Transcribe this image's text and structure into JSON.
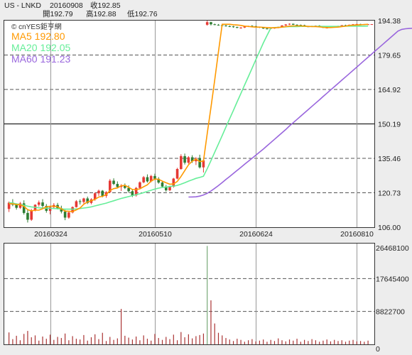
{
  "header": {
    "symbol": "US - LNKD",
    "date": "20160908",
    "close_label": "收192.85",
    "open_label": "開192.79",
    "high_label": "高192.88",
    "low_label": "低192.76"
  },
  "source_mark": "© cnYES鉅亨網",
  "colors": {
    "background": "#ededed",
    "plot_bg": "#ffffff",
    "up_candle": "#e53935",
    "down_candle": "#2e7d32",
    "ma5": "#ff9900",
    "ma20": "#66ee99",
    "ma60": "#9966dd",
    "volume_bar": "#aa3333",
    "volume_spike": "#77aa77"
  },
  "chart_data": [
    {
      "type": "candlestick",
      "title": "US - LNKD",
      "x_tick_labels": [
        "20160324",
        "20160510",
        "20160624",
        "20160810"
      ],
      "ylim": [
        106.0,
        194.38
      ],
      "y_ticks": [
        194.38,
        179.65,
        164.92,
        150.19,
        135.46,
        120.73,
        106.0
      ],
      "y_tick_labels": [
        "194.38",
        "179.65",
        "164.92",
        "150.19",
        "135.46",
        "120.73",
        "106.00"
      ],
      "grid": true,
      "legend_position": "top-left",
      "moving_averages": [
        {
          "name": "MA5",
          "label": "MA5 192.80"
        },
        {
          "name": "MA20",
          "label": "MA20 192.05"
        },
        {
          "name": "MA60",
          "label": "MA60 191.23"
        }
      ],
      "ohlc": [
        [
          113.8,
          117.0,
          112.5,
          116.5
        ],
        [
          116.5,
          118.0,
          115.0,
          115.6
        ],
        [
          115.6,
          116.2,
          113.5,
          114.3
        ],
        [
          114.3,
          116.8,
          113.8,
          116.2
        ],
        [
          116.2,
          117.5,
          111.4,
          112.1
        ],
        [
          112.1,
          113.4,
          108.0,
          109.2
        ],
        [
          109.2,
          113.8,
          108.7,
          113.1
        ],
        [
          113.1,
          115.8,
          112.8,
          115.6
        ],
        [
          115.6,
          117.4,
          114.8,
          116.6
        ],
        [
          116.6,
          118.0,
          114.2,
          115.1
        ],
        [
          115.1,
          115.9,
          112.2,
          113.0
        ],
        [
          113.0,
          114.8,
          111.5,
          114.6
        ],
        [
          114.6,
          116.3,
          113.9,
          115.5
        ],
        [
          115.5,
          116.4,
          113.6,
          114.1
        ],
        [
          114.1,
          115.2,
          111.9,
          112.7
        ],
        [
          112.7,
          113.4,
          109.0,
          110.1
        ],
        [
          110.1,
          112.6,
          109.6,
          112.3
        ],
        [
          112.3,
          114.9,
          111.9,
          114.6
        ],
        [
          114.6,
          117.6,
          114.4,
          117.1
        ],
        [
          117.1,
          117.9,
          115.7,
          116.8
        ],
        [
          116.8,
          118.6,
          116.1,
          118.3
        ],
        [
          118.3,
          119.1,
          115.9,
          116.4
        ],
        [
          116.4,
          118.4,
          115.8,
          117.9
        ],
        [
          117.9,
          120.9,
          117.3,
          120.5
        ],
        [
          120.5,
          122.1,
          119.4,
          121.6
        ],
        [
          121.6,
          121.9,
          118.8,
          119.4
        ],
        [
          119.4,
          121.4,
          118.6,
          121.0
        ],
        [
          121.0,
          126.6,
          120.7,
          125.9
        ],
        [
          125.9,
          126.9,
          124.0,
          124.5
        ],
        [
          124.5,
          125.6,
          122.6,
          123.2
        ],
        [
          123.2,
          124.4,
          121.5,
          123.8
        ],
        [
          123.8,
          124.7,
          122.3,
          122.8
        ],
        [
          122.8,
          123.9,
          120.7,
          121.4
        ],
        [
          121.4,
          122.4,
          118.9,
          119.6
        ],
        [
          119.6,
          123.2,
          119.1,
          122.8
        ],
        [
          122.8,
          125.6,
          122.4,
          125.2
        ],
        [
          125.2,
          127.9,
          124.8,
          127.4
        ],
        [
          127.4,
          128.6,
          125.1,
          125.6
        ],
        [
          125.6,
          128.4,
          125.2,
          127.9
        ],
        [
          127.9,
          128.9,
          126.2,
          126.7
        ],
        [
          126.7,
          127.4,
          124.6,
          125.1
        ],
        [
          125.1,
          125.7,
          122.9,
          123.4
        ],
        [
          123.4,
          124.1,
          121.2,
          121.8
        ],
        [
          121.8,
          123.7,
          121.4,
          123.3
        ],
        [
          123.3,
          127.1,
          122.9,
          126.8
        ],
        [
          126.8,
          131.4,
          126.5,
          130.9
        ],
        [
          130.9,
          137.2,
          130.6,
          136.4
        ],
        [
          136.4,
          137.5,
          132.8,
          133.6
        ],
        [
          133.6,
          136.4,
          133.1,
          135.9
        ],
        [
          135.9,
          136.8,
          133.5,
          134.2
        ],
        [
          134.2,
          136.0,
          132.6,
          135.4
        ],
        [
          135.4,
          137.0,
          131.1,
          131.6
        ],
        [
          131.6,
          134.9,
          129.4,
          134.6
        ],
        [
          192.6,
          194.4,
          192.2,
          193.7
        ],
        [
          193.7,
          193.9,
          192.3,
          192.8
        ],
        [
          192.8,
          193.1,
          192.4,
          192.6
        ],
        [
          192.6,
          192.9,
          192.2,
          192.4
        ],
        [
          192.4,
          192.6,
          192.1,
          192.3
        ],
        [
          192.3,
          192.5,
          191.8,
          192.0
        ],
        [
          192.0,
          192.3,
          191.6,
          191.9
        ],
        [
          191.9,
          192.1,
          191.3,
          191.6
        ],
        [
          191.6,
          191.8,
          191.1,
          191.3
        ],
        [
          191.3,
          191.6,
          190.9,
          191.4
        ],
        [
          191.4,
          191.9,
          191.2,
          191.8
        ],
        [
          191.8,
          192.2,
          191.6,
          192.1
        ],
        [
          192.1,
          192.4,
          191.9,
          192.0
        ],
        [
          192.0,
          192.1,
          191.5,
          191.7
        ],
        [
          191.7,
          191.8,
          191.2,
          191.4
        ],
        [
          191.4,
          191.6,
          190.8,
          191.0
        ],
        [
          191.0,
          191.2,
          190.6,
          190.9
        ],
        [
          190.9,
          191.3,
          190.7,
          191.2
        ],
        [
          191.2,
          191.5,
          190.9,
          191.3
        ],
        [
          191.3,
          191.8,
          191.1,
          191.7
        ],
        [
          191.7,
          192.4,
          191.6,
          192.3
        ],
        [
          192.3,
          192.9,
          192.1,
          192.7
        ],
        [
          192.7,
          193.2,
          192.5,
          193.0
        ],
        [
          193.0,
          193.1,
          192.5,
          192.6
        ],
        [
          192.6,
          192.8,
          192.3,
          192.5
        ],
        [
          192.5,
          192.7,
          192.1,
          192.4
        ],
        [
          192.4,
          192.6,
          191.8,
          191.9
        ],
        [
          191.9,
          192.1,
          191.6,
          191.8
        ],
        [
          191.8,
          192.2,
          191.7,
          192.1
        ],
        [
          192.1,
          192.3,
          191.9,
          192.2
        ],
        [
          192.2,
          192.4,
          191.7,
          191.8
        ],
        [
          191.8,
          191.9,
          191.2,
          191.3
        ],
        [
          191.3,
          191.5,
          191.0,
          191.4
        ],
        [
          191.4,
          191.8,
          191.3,
          191.7
        ],
        [
          191.7,
          192.0,
          191.5,
          191.9
        ],
        [
          191.9,
          192.2,
          191.8,
          192.1
        ],
        [
          192.1,
          192.5,
          191.9,
          192.4
        ],
        [
          192.4,
          192.6,
          192.1,
          192.3
        ],
        [
          192.3,
          192.7,
          192.2,
          192.6
        ],
        [
          192.6,
          192.9,
          192.4,
          192.8
        ],
        [
          192.8,
          193.0,
          192.6,
          192.9
        ],
        [
          192.9,
          193.0,
          192.6,
          192.7
        ],
        [
          192.7,
          192.9,
          192.6,
          192.8
        ],
        [
          192.8,
          192.9,
          192.7,
          192.8
        ],
        [
          192.79,
          192.88,
          192.76,
          192.85
        ]
      ],
      "ma5": [
        116.0,
        116.0,
        115.7,
        115.6,
        114.9,
        113.5,
        113.0,
        113.3,
        113.3,
        113.9,
        114.7,
        115.0,
        115.0,
        114.7,
        113.9,
        112.9,
        112.8,
        112.7,
        113.4,
        114.2,
        115.8,
        116.8,
        117.3,
        117.9,
        118.9,
        119.2,
        119.9,
        121.7,
        122.5,
        122.8,
        123.7,
        123.9,
        123.1,
        122.1,
        122.1,
        122.4,
        123.3,
        124.1,
        125.7,
        126.6,
        126.5,
        125.7,
        125.0,
        124.4,
        124.5,
        125.6,
        127.7,
        130.2,
        132.7,
        134.2,
        135.1,
        134.1,
        134.3,
        146.0,
        157.3,
        168.8,
        181.0,
        192.8,
        192.8,
        192.8,
        192.6,
        192.5,
        192.3,
        192.0,
        191.9,
        191.7,
        191.6,
        191.6,
        191.5,
        191.4,
        191.3,
        191.3,
        191.4,
        191.6,
        191.8,
        192.0,
        192.1,
        192.1,
        192.1,
        192.0,
        191.9,
        191.8,
        191.8,
        191.7,
        191.5,
        191.4,
        191.4,
        191.5,
        191.6,
        191.8,
        192.0,
        192.3,
        192.4,
        192.5,
        192.6,
        192.7,
        192.8
      ],
      "ma20": [
        116.5,
        116.3,
        116.0,
        115.7,
        115.4,
        115.0,
        114.7,
        114.5,
        114.3,
        114.2,
        114.1,
        114.1,
        114.0,
        113.9,
        113.8,
        113.7,
        113.7,
        113.7,
        113.8,
        114.0,
        114.2,
        114.4,
        114.7,
        115.1,
        115.5,
        115.9,
        116.3,
        116.8,
        117.3,
        117.8,
        118.3,
        118.7,
        119.1,
        119.5,
        119.9,
        120.3,
        120.8,
        121.3,
        121.8,
        122.3,
        122.7,
        123.0,
        123.2,
        123.4,
        123.6,
        123.9,
        124.4,
        125.0,
        125.7,
        126.3,
        126.9,
        127.3,
        127.8,
        131.0,
        134.5,
        138.0,
        141.6,
        145.2,
        148.8,
        152.4,
        156.0,
        159.6,
        163.2,
        166.8,
        170.4,
        174.0,
        177.6,
        181.2,
        184.8,
        188.0,
        191.2,
        191.4,
        191.5,
        191.6,
        191.7,
        191.8,
        191.8,
        191.8,
        191.9,
        191.9,
        191.9,
        191.9,
        191.9,
        191.9,
        191.9,
        191.9,
        191.9,
        191.9,
        191.9,
        191.9,
        192.0,
        192.0,
        192.0,
        192.0,
        192.0,
        192.0,
        192.05
      ],
      "ma60_start_index": 48,
      "ma60": [
        118.9,
        118.95,
        119.0,
        119.3,
        119.8,
        120.5,
        121.5,
        122.6,
        123.8,
        125.1,
        126.4,
        127.7,
        129.0,
        130.3,
        131.6,
        132.9,
        134.2,
        135.5,
        136.8,
        138.1,
        139.4,
        140.8,
        142.2,
        143.6,
        145.0,
        146.4,
        147.8,
        149.3,
        150.7,
        152.1,
        153.5,
        154.9,
        156.3,
        157.7,
        159.1,
        160.5,
        161.9,
        163.3,
        164.7,
        166.1,
        167.5,
        168.9,
        170.3,
        171.7,
        173.1,
        174.5,
        175.9,
        177.3,
        178.7,
        180.1,
        181.5,
        182.9,
        184.3,
        185.7,
        187.1,
        188.5,
        189.9,
        190.6,
        190.9,
        191.0,
        191.1,
        191.2,
        191.23
      ]
    },
    {
      "type": "bar",
      "title": "",
      "ylim": [
        0,
        26468100
      ],
      "y_ticks": [
        26468100,
        17645400,
        8822700,
        0
      ],
      "y_tick_labels": [
        "26468100",
        "17645400",
        "8822700",
        "0"
      ],
      "grid": true,
      "volume": [
        3200000,
        1400000,
        2300000,
        1100000,
        2800000,
        3600000,
        1900000,
        2400000,
        1000000,
        2100000,
        1500000,
        2600000,
        1200000,
        2000000,
        1700000,
        2900000,
        1100000,
        2200000,
        1500000,
        1300000,
        2500000,
        1000000,
        1900000,
        2700000,
        1400000,
        3100000,
        900000,
        2000000,
        1200000,
        1600000,
        9500000,
        2300000,
        1800000,
        1300000,
        2100000,
        1100000,
        2400000,
        1500000,
        1000000,
        2800000,
        1700000,
        1200000,
        2000000,
        1400000,
        2600000,
        1100000,
        3300000,
        1900000,
        2700000,
        1600000,
        2200000,
        2500000,
        2900000,
        26400000,
        11800000,
        5600000,
        3100000,
        2400000,
        1700000,
        1300000,
        900000,
        1500000,
        1200000,
        700000,
        1100000,
        1400000,
        800000,
        1000000,
        1300000,
        700000,
        1200000,
        900000,
        1600000,
        1100000,
        800000,
        1300000,
        1000000,
        1500000,
        700000,
        1200000,
        900000,
        1400000,
        1100000,
        700000,
        1000000,
        1300000,
        800000,
        1200000,
        900000,
        1100000,
        700000,
        1000000,
        1200000,
        800000,
        900000,
        700000,
        1000000
      ]
    }
  ]
}
